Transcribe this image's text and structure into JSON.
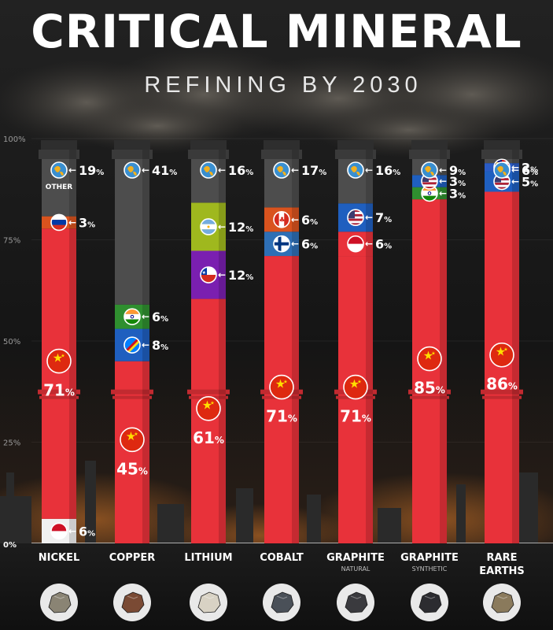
{
  "header": {
    "title": "CRITICAL MINERAL",
    "subtitle": "REFINING BY 2030"
  },
  "colors": {
    "china": "#e8323a",
    "other": "#4d4d4d",
    "russia": "#d9531e",
    "indonesia": "#e8323a",
    "india": "#2f8f2f",
    "drc": "#1f5fbf",
    "argentina": "#9fb81e",
    "chile": "#7a1fb0",
    "canada": "#d9531e",
    "finland": "#2e6fb5",
    "usa": "#1f5fbf",
    "malaysia": "#2a5bc4"
  },
  "chart_data": {
    "type": "stacked-bar",
    "ylim": [
      0,
      100
    ],
    "yticks": [
      "0%",
      "25%",
      "50%",
      "75%",
      "100%"
    ],
    "categories": [
      {
        "name": "NICKEL",
        "sub": "",
        "mineral_icon": "nickel-ore-icon",
        "mineral_color": "#8a8474",
        "segments": [
          {
            "country": "indonesia",
            "value": 6,
            "label": "6",
            "icon": "indonesia-flag-icon",
            "color": "#f0f0f0"
          },
          {
            "country": "china",
            "value": 71,
            "label": "71",
            "icon": "china-flag-icon",
            "color": "#e8323a"
          },
          {
            "country": "russia",
            "value": 3,
            "label": "3",
            "icon": "russia-flag-icon",
            "color": "#d9531e"
          },
          {
            "country": "other",
            "value": 19,
            "label": "19",
            "icon": "globe-icon",
            "color": "#4d4d4d",
            "note": "OTHER"
          }
        ]
      },
      {
        "name": "COPPER",
        "sub": "",
        "mineral_icon": "copper-ore-icon",
        "mineral_color": "#7a4a34",
        "segments": [
          {
            "country": "china",
            "value": 45,
            "label": "45",
            "icon": "china-flag-icon",
            "color": "#e8323a"
          },
          {
            "country": "drc",
            "value": 8,
            "label": "8",
            "icon": "drc-flag-icon",
            "color": "#1f5fbf"
          },
          {
            "country": "india",
            "value": 6,
            "label": "6",
            "icon": "india-flag-icon",
            "color": "#2f8f2f"
          },
          {
            "country": "other",
            "value": 41,
            "label": "41",
            "icon": "globe-icon",
            "color": "#4d4d4d"
          }
        ]
      },
      {
        "name": "LITHIUM",
        "sub": "",
        "mineral_icon": "lithium-ore-icon",
        "mineral_color": "#d8d2c4",
        "segments": [
          {
            "country": "china",
            "value": 61,
            "label": "61",
            "icon": "china-flag-icon",
            "color": "#e8323a"
          },
          {
            "country": "chile",
            "value": 12,
            "label": "12",
            "icon": "chile-flag-icon",
            "color": "#7a1fb0"
          },
          {
            "country": "argentina",
            "value": 12,
            "label": "12",
            "icon": "argentina-flag-icon",
            "color": "#9fb81e"
          },
          {
            "country": "other",
            "value": 16,
            "label": "16",
            "icon": "globe-icon",
            "color": "#4d4d4d"
          }
        ]
      },
      {
        "name": "COBALT",
        "sub": "",
        "mineral_icon": "cobalt-ore-icon",
        "mineral_color": "#4a5058",
        "segments": [
          {
            "country": "china",
            "value": 71,
            "label": "71",
            "icon": "china-flag-icon",
            "color": "#e8323a"
          },
          {
            "country": "finland",
            "value": 6,
            "label": "6",
            "icon": "finland-flag-icon",
            "color": "#2e6fb5"
          },
          {
            "country": "canada",
            "value": 6,
            "label": "6",
            "icon": "canada-flag-icon",
            "color": "#d9531e"
          },
          {
            "country": "other",
            "value": 17,
            "label": "17",
            "icon": "globe-icon",
            "color": "#4d4d4d"
          }
        ]
      },
      {
        "name": "GRAPHITE",
        "sub": "NATURAL",
        "mineral_icon": "graphite-natural-icon",
        "mineral_color": "#3a3a3e",
        "segments": [
          {
            "country": "china",
            "value": 71,
            "label": "71",
            "icon": "china-flag-icon",
            "color": "#e8323a"
          },
          {
            "country": "indonesia",
            "value": 6,
            "label": "6",
            "icon": "indonesia-flag-icon",
            "color": "#e8323a"
          },
          {
            "country": "usa",
            "value": 7,
            "label": "7",
            "icon": "usa-flag-icon",
            "color": "#1f5fbf"
          },
          {
            "country": "other",
            "value": 16,
            "label": "16",
            "icon": "globe-icon",
            "color": "#4d4d4d"
          }
        ]
      },
      {
        "name": "GRAPHITE",
        "sub": "SYNTHETIC",
        "mineral_icon": "graphite-synthetic-icon",
        "mineral_color": "#2c2c30",
        "segments": [
          {
            "country": "china",
            "value": 85,
            "label": "85",
            "icon": "china-flag-icon",
            "color": "#e8323a"
          },
          {
            "country": "india",
            "value": 3,
            "label": "3",
            "icon": "india-flag-icon",
            "color": "#2f8f2f"
          },
          {
            "country": "usa",
            "value": 3,
            "label": "3",
            "icon": "usa-flag-icon",
            "color": "#1f5fbf"
          },
          {
            "country": "other",
            "value": 9,
            "label": "9",
            "icon": "globe-icon",
            "color": "#4d4d4d"
          }
        ]
      },
      {
        "name": "RARE",
        "sub2": "EARTHS",
        "sub": "",
        "mineral_icon": "rare-earths-icon",
        "mineral_color": "#8a7a5c",
        "segments": [
          {
            "country": "china",
            "value": 86,
            "label": "86",
            "icon": "china-flag-icon",
            "color": "#e8323a"
          },
          {
            "country": "usa",
            "value": 5,
            "label": "5",
            "icon": "usa-flag-icon",
            "color": "#1f5fbf"
          },
          {
            "country": "malaysia",
            "value": 2,
            "label": "2",
            "icon": "malaysia-flag-icon",
            "color": "#2a5bc4"
          },
          {
            "country": "other",
            "value": 6,
            "label": "6",
            "icon": "globe-icon",
            "color": "#4d4d4d"
          }
        ]
      }
    ],
    "percent_suffix": "%"
  }
}
